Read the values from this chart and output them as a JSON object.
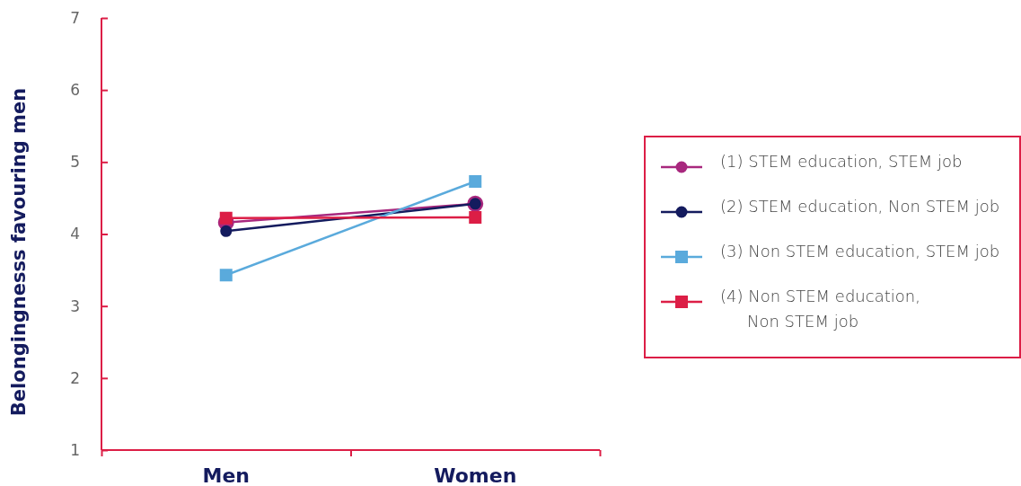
{
  "chart_data": {
    "type": "line",
    "ylabel": "Belongingnesss favouring men",
    "categories": [
      "Men",
      "Women"
    ],
    "ylim": [
      1,
      7
    ],
    "yticks": [
      1,
      2,
      3,
      4,
      5,
      6,
      7
    ],
    "grid": false,
    "legend": "right",
    "series": [
      {
        "name": "(1) STEM education, STEM job",
        "color": "#a8287e",
        "marker": "circle",
        "values": [
          4.16,
          4.42
        ]
      },
      {
        "name": "(2) STEM education, Non STEM job",
        "color": "#141b5e",
        "marker": "circle",
        "values": [
          4.04,
          4.42
        ]
      },
      {
        "name": "(3) Non STEM education, STEM job",
        "color": "#5aaadc",
        "marker": "square",
        "values": [
          3.43,
          4.73
        ]
      },
      {
        "name": "(4) Non STEM education, Non STEM job",
        "color": "#dc1e46",
        "marker": "square",
        "values": [
          4.22,
          4.23
        ]
      }
    ]
  }
}
